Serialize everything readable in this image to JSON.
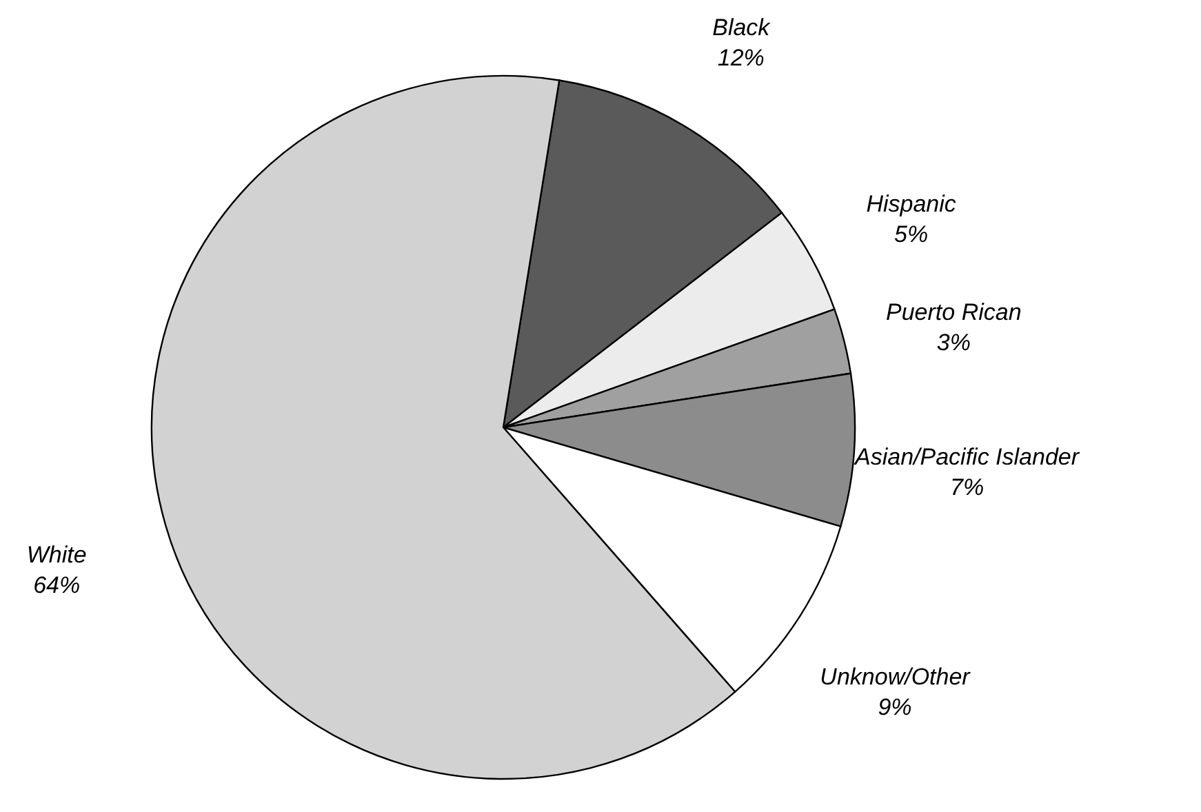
{
  "chart_data": {
    "type": "pie",
    "categories": [
      "Black",
      "Hispanic",
      "Puerto Rican",
      "Asian/Pacific Islander",
      "Unknow/Other",
      "White"
    ],
    "values": [
      12,
      5,
      3,
      7,
      9,
      64
    ],
    "value_labels": [
      "12%",
      "5%",
      "3%",
      "7%",
      "9%",
      "64%"
    ],
    "colors": [
      "#5a5a5a",
      "#ececec",
      "#a0a0a0",
      "#8c8c8c",
      "#ffffff",
      "#d2d2d2"
    ]
  }
}
